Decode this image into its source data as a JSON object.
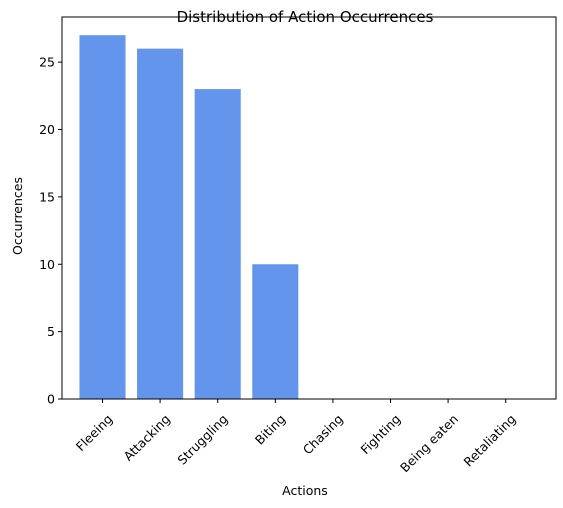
{
  "chart_data": {
    "type": "bar",
    "title": "Distribution of Action Occurrences",
    "xlabel": "Actions",
    "ylabel": "Occurrences",
    "categories": [
      "Fleeing",
      "Attacking",
      "Struggling",
      "Biting",
      "Chasing",
      "Fighting",
      "Being eaten",
      "Retaliating"
    ],
    "values": [
      27,
      26,
      23,
      10,
      0,
      0,
      0,
      0
    ],
    "ylim": [
      0,
      28.35
    ],
    "yticks": [
      0,
      5,
      10,
      15,
      20,
      25
    ],
    "bar_color": "#6495ed",
    "grid": false,
    "legend": "none"
  }
}
